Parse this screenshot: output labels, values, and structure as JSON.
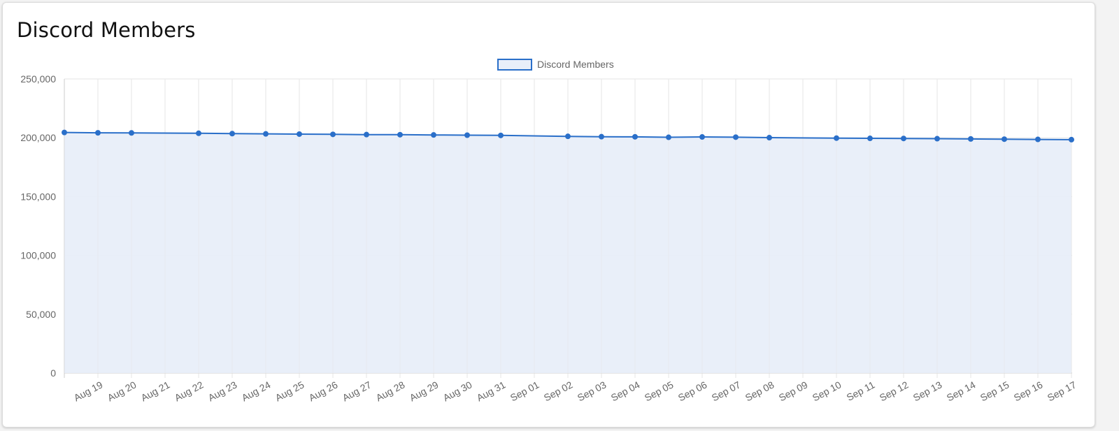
{
  "card": {
    "title": "Discord Members"
  },
  "chart_data": {
    "type": "area",
    "title": "Discord Members",
    "xlabel": "",
    "ylabel": "",
    "ylim": [
      0,
      250000
    ],
    "yticks": [
      0,
      50000,
      100000,
      150000,
      200000,
      250000
    ],
    "ytick_labels": [
      "0",
      "50,000",
      "100,000",
      "150,000",
      "200,000",
      "250,000"
    ],
    "grid": true,
    "legend_position": "top-center",
    "legend": [
      "Discord Members"
    ],
    "x": [
      "2023-08-18",
      "2023-08-19",
      "2023-08-20",
      "2023-08-22",
      "2023-08-23",
      "2023-08-24",
      "2023-08-25",
      "2023-08-26",
      "2023-08-27",
      "2023-08-28",
      "2023-08-29",
      "2023-08-30",
      "2023-08-31",
      "2023-09-02",
      "2023-09-03",
      "2023-09-04",
      "2023-09-05",
      "2023-09-06",
      "2023-09-07",
      "2023-09-08",
      "2023-09-10",
      "2023-09-11",
      "2023-09-12",
      "2023-09-13",
      "2023-09-14",
      "2023-09-15",
      "2023-09-16",
      "2023-09-17"
    ],
    "x_tick_labels": [
      "Aug 19",
      "Aug 20",
      "Aug 21",
      "Aug 22",
      "Aug 23",
      "Aug 24",
      "Aug 25",
      "Aug 26",
      "Aug 27",
      "Aug 28",
      "Aug 29",
      "Aug 30",
      "Aug 31",
      "Sep 01",
      "Sep 02",
      "Sep 03",
      "Sep 04",
      "Sep 05",
      "Sep 06",
      "Sep 07",
      "Sep 08",
      "Sep 09",
      "Sep 10",
      "Sep 11",
      "Sep 12",
      "Sep 13",
      "Sep 14",
      "Sep 15",
      "Sep 16",
      "Sep 17"
    ],
    "x_tick_dates": [
      "2023-08-19",
      "2023-08-20",
      "2023-08-21",
      "2023-08-22",
      "2023-08-23",
      "2023-08-24",
      "2023-08-25",
      "2023-08-26",
      "2023-08-27",
      "2023-08-28",
      "2023-08-29",
      "2023-08-30",
      "2023-08-31",
      "2023-09-01",
      "2023-09-02",
      "2023-09-03",
      "2023-09-04",
      "2023-09-05",
      "2023-09-06",
      "2023-09-07",
      "2023-09-08",
      "2023-09-09",
      "2023-09-10",
      "2023-09-11",
      "2023-09-12",
      "2023-09-13",
      "2023-09-14",
      "2023-09-15",
      "2023-09-16",
      "2023-09-17"
    ],
    "series": [
      {
        "name": "Discord Members",
        "values": [
          204500,
          204200,
          204100,
          203800,
          203500,
          203300,
          203100,
          202900,
          202700,
          202600,
          202400,
          202200,
          202000,
          201200,
          200900,
          200800,
          200400,
          200700,
          200500,
          200100,
          199700,
          199500,
          199400,
          199200,
          199000,
          198800,
          198600,
          198400
        ]
      }
    ],
    "colors": {
      "line": "#2a6fc9",
      "fill": "#e8eef9",
      "grid": "#e5e5e5",
      "axis": "#cccccc",
      "text": "#666666"
    }
  }
}
